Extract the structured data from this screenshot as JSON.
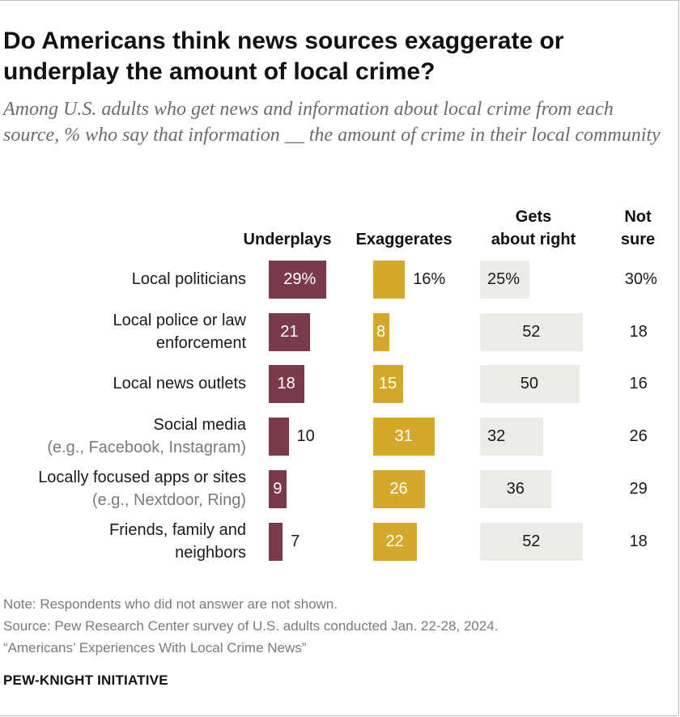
{
  "title": "Do Americans think news sources exaggerate or underplay the amount of local crime?",
  "subtitle": "Among U.S. adults who get news and information about local crime from each source, % who say that information __ the amount of crime in their local community",
  "chart_data": {
    "type": "bar",
    "orientation": "horizontal",
    "stacked": false,
    "columns": [
      {
        "key": "underplays",
        "label": "Underplays"
      },
      {
        "key": "exaggerates",
        "label": "Exaggerates"
      },
      {
        "key": "gets_right",
        "label": "Gets about right"
      },
      {
        "key": "not_sure",
        "label": "Not sure"
      }
    ],
    "column_labels": {
      "underplays": "Underplays",
      "exaggerates": "Exaggerates",
      "gets_right_line1": "Gets",
      "gets_right_line2": "about right",
      "not_sure_line1": "Not",
      "not_sure_line2": "sure"
    },
    "categories": [
      "Local politicians",
      "Local police or law enforcement",
      "Local news outlets",
      "Social media (e.g., Facebook, Instagram)",
      "Locally focused apps or sites (e.g., Nextdoor, Ring)",
      "Friends, family and neighbors"
    ],
    "rows": [
      {
        "label_lines": [
          "Local politicians"
        ],
        "label_extra": "",
        "underplays": 29,
        "exaggerates": 16,
        "gets_right": 25,
        "not_sure": 30,
        "underplays_text": "29%",
        "exaggerates_text": "16%",
        "gets_right_text": "25%",
        "not_sure_text": "30%"
      },
      {
        "label_lines": [
          "Local police or law",
          "enforcement"
        ],
        "label_extra": "",
        "underplays": 21,
        "exaggerates": 8,
        "gets_right": 52,
        "not_sure": 18,
        "underplays_text": "21",
        "exaggerates_text": "8",
        "gets_right_text": "52",
        "not_sure_text": "18"
      },
      {
        "label_lines": [
          "Local news outlets"
        ],
        "label_extra": "",
        "underplays": 18,
        "exaggerates": 15,
        "gets_right": 50,
        "not_sure": 16,
        "underplays_text": "18",
        "exaggerates_text": "15",
        "gets_right_text": "50",
        "not_sure_text": "16"
      },
      {
        "label_lines": [
          "Social media"
        ],
        "label_extra": "(e.g., Facebook, Instagram)",
        "underplays": 10,
        "exaggerates": 31,
        "gets_right": 32,
        "not_sure": 26,
        "underplays_text": "10",
        "exaggerates_text": "31",
        "gets_right_text": "32",
        "not_sure_text": "26"
      },
      {
        "label_lines": [
          "Locally focused apps or sites"
        ],
        "label_extra": "(e.g., Nextdoor, Ring)",
        "underplays": 9,
        "exaggerates": 26,
        "gets_right": 36,
        "not_sure": 29,
        "underplays_text": "9",
        "exaggerates_text": "26",
        "gets_right_text": "36",
        "not_sure_text": "29"
      },
      {
        "label_lines": [
          "Friends, family and",
          "neighbors"
        ],
        "label_extra": "",
        "underplays": 7,
        "exaggerates": 22,
        "gets_right": 52,
        "not_sure": 18,
        "underplays_text": "7",
        "exaggerates_text": "22",
        "gets_right_text": "52",
        "not_sure_text": "18"
      }
    ],
    "colors": {
      "underplays": "#7b3a4a",
      "exaggerates": "#d4a82a",
      "gets_right": "#edebe5"
    },
    "grid": false,
    "legend": "column headers"
  },
  "notes": {
    "note": "Note: Respondents who did not answer are not shown.",
    "source": "Source: Pew Research Center survey of U.S. adults conducted Jan. 22-28, 2024.",
    "report": "“Americans’ Experiences With Local Crime News”"
  },
  "brand": "PEW-KNIGHT INITIATIVE"
}
